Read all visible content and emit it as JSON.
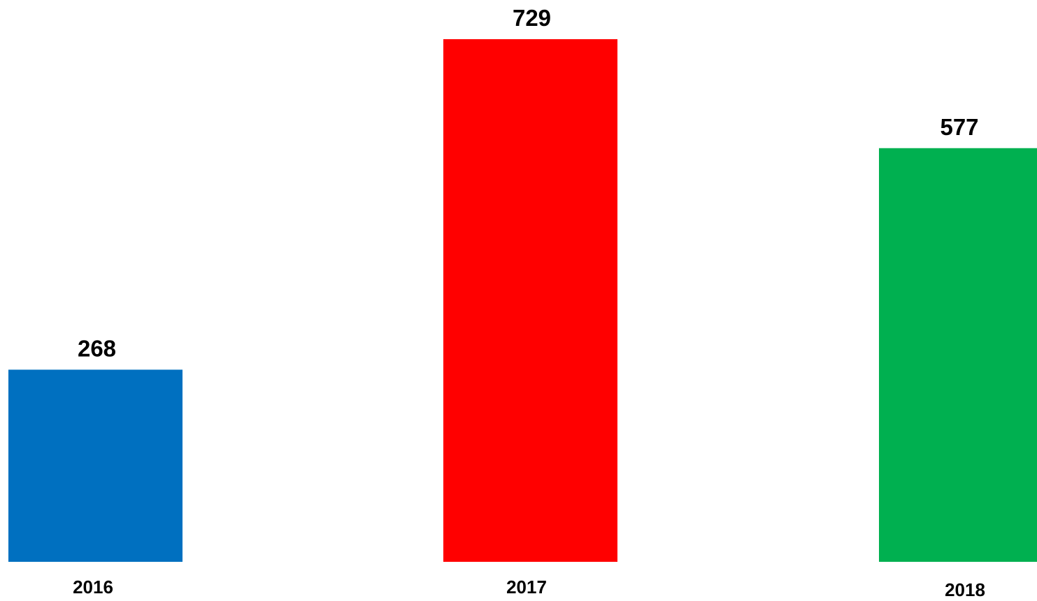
{
  "chart_data": {
    "type": "bar",
    "categories": [
      "2016",
      "2017",
      "2018"
    ],
    "values": [
      268,
      729,
      577
    ],
    "value_labels": [
      "268",
      "729",
      "577"
    ],
    "colors": [
      "#0070C0",
      "#FF0000",
      "#00B050"
    ],
    "ylim": [
      0,
      729
    ],
    "grid": false,
    "legend": "none"
  }
}
